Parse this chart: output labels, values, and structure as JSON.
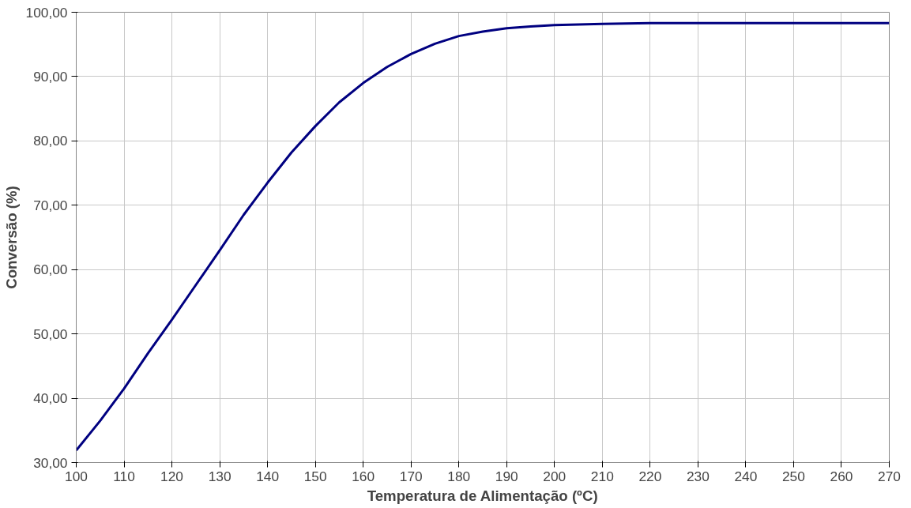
{
  "chart_data": {
    "type": "line",
    "xlabel": "Temperatura de Alimentação (ºC)",
    "ylabel": "Conversão (%)",
    "x": [
      100,
      105,
      110,
      115,
      120,
      125,
      130,
      135,
      140,
      145,
      150,
      155,
      160,
      165,
      170,
      175,
      180,
      185,
      190,
      195,
      200,
      210,
      220,
      230,
      240,
      250,
      260,
      270
    ],
    "series": [
      {
        "color": "#000080",
        "values": [
          31.9,
          36.5,
          41.5,
          47,
          52.2,
          57.6,
          63,
          68.5,
          73.5,
          78.2,
          82.3,
          86,
          89,
          91.5,
          93.5,
          95.1,
          96.3,
          97,
          97.5,
          97.8,
          98,
          98.2,
          98.3,
          98.3,
          98.3,
          98.3,
          98.3,
          98.3
        ]
      }
    ],
    "xlim": [
      100,
      270
    ],
    "xticks": [
      100,
      110,
      120,
      130,
      140,
      150,
      160,
      170,
      180,
      190,
      200,
      210,
      220,
      230,
      240,
      250,
      260,
      270
    ],
    "ylim": [
      30,
      100
    ],
    "yticks": [
      {
        "value": 30,
        "label": "30,00"
      },
      {
        "value": 40,
        "label": "40,00"
      },
      {
        "value": 50,
        "label": "50,00"
      },
      {
        "value": 60,
        "label": "60,00"
      },
      {
        "value": 70,
        "label": "70,00"
      },
      {
        "value": 80,
        "label": "80,00"
      },
      {
        "value": 90,
        "label": "90,00"
      },
      {
        "value": 100,
        "label": "100,00"
      }
    ],
    "grid": true,
    "marker": "none",
    "line_style": "solid"
  }
}
